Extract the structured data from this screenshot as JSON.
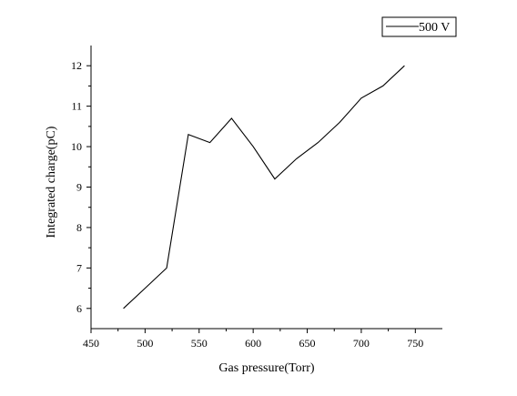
{
  "chart_data": {
    "type": "line",
    "xlabel": "Gas pressure(Torr)",
    "ylabel": "Integrated charge(pC)",
    "xlim": [
      450,
      775
    ],
    "ylim": [
      5.5,
      12.5
    ],
    "x_ticks": [
      450,
      500,
      550,
      600,
      650,
      700,
      750
    ],
    "y_ticks": [
      6,
      7,
      8,
      9,
      10,
      11,
      12
    ],
    "legend_position": "top-right",
    "grid": false,
    "series": [
      {
        "name": "500 V",
        "color": "#000000",
        "x": [
          480,
          500,
          520,
          540,
          560,
          580,
          600,
          620,
          640,
          660,
          680,
          700,
          720,
          740
        ],
        "y": [
          6.0,
          6.5,
          7.0,
          10.3,
          10.1,
          10.7,
          10.0,
          9.2,
          9.7,
          10.1,
          10.6,
          11.2,
          11.5,
          12.0
        ]
      }
    ]
  }
}
